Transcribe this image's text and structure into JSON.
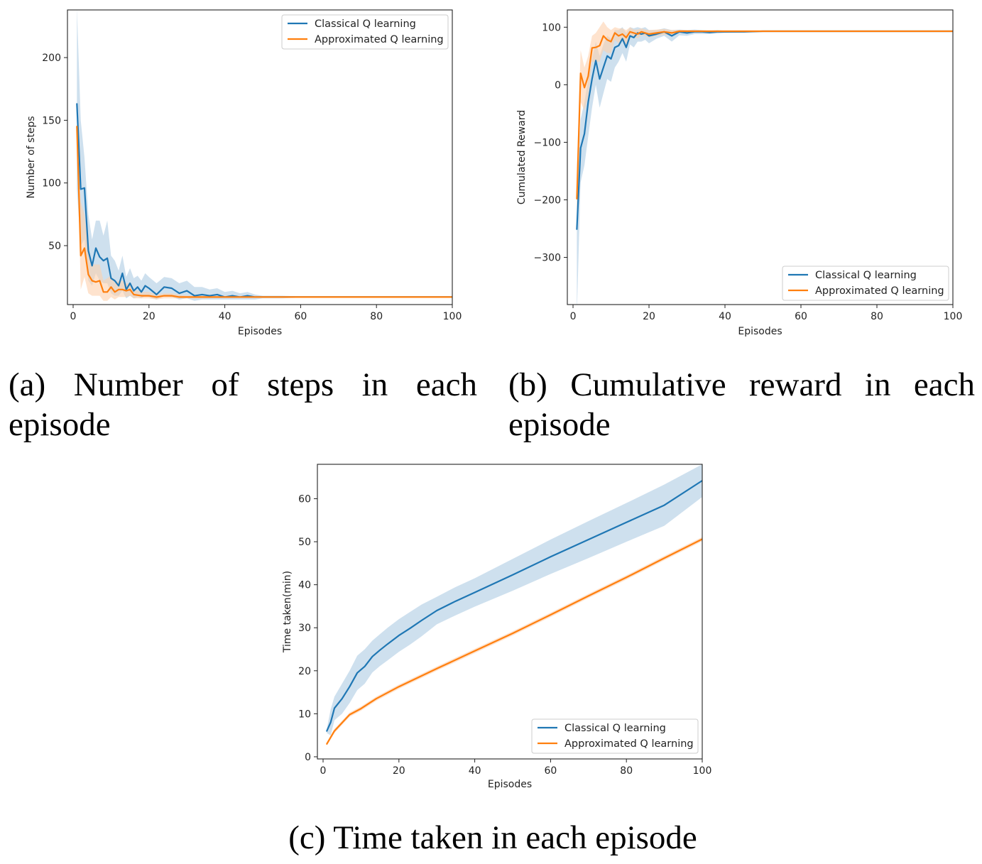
{
  "colors": {
    "classical": "#1f77b4",
    "approximated": "#ff7f0e"
  },
  "captions": {
    "a": "(a) Number of steps in each episode",
    "b": "(b) Cumulative reward in each episode",
    "c": "(c) Time taken in each episode"
  },
  "chart_data": [
    {
      "id": "a",
      "type": "line",
      "xlabel": "Episodes",
      "ylabel": "Number of steps",
      "xlim": [
        -1.5,
        100
      ],
      "ylim": [
        3,
        238
      ],
      "xticks": [
        0,
        20,
        40,
        60,
        80,
        100
      ],
      "yticks": [
        50,
        100,
        150,
        200
      ],
      "grid": false,
      "legend_position": "top-right",
      "series": [
        {
          "name": "Classical Q learning",
          "color": "#1f77b4",
          "band_color": "#aecbe3",
          "x": [
            1,
            2,
            3,
            4,
            5,
            6,
            7,
            8,
            9,
            10,
            11,
            12,
            13,
            14,
            15,
            16,
            17,
            18,
            19,
            20,
            22,
            24,
            26,
            28,
            30,
            32,
            34,
            36,
            38,
            40,
            42,
            44,
            46,
            48,
            50,
            55,
            60,
            70,
            80,
            90,
            100
          ],
          "y": [
            163,
            95,
            96,
            46,
            34,
            48,
            41,
            38,
            40,
            24,
            22,
            18,
            28,
            15,
            20,
            14,
            17,
            13,
            18,
            16,
            11,
            17,
            16,
            12,
            14,
            10,
            11,
            10,
            11,
            9,
            10,
            9,
            10,
            9,
            9,
            9,
            9,
            9,
            9,
            9,
            9
          ],
          "upper": [
            240,
            150,
            120,
            75,
            55,
            70,
            70,
            58,
            70,
            42,
            38,
            30,
            42,
            25,
            32,
            24,
            26,
            22,
            28,
            25,
            20,
            25,
            24,
            20,
            22,
            17,
            17,
            15,
            16,
            13,
            14,
            12,
            13,
            11,
            10,
            10,
            9.5,
            9.2,
            9.1,
            9,
            9
          ],
          "lower": [
            95,
            50,
            55,
            22,
            18,
            28,
            22,
            20,
            20,
            12,
            10,
            10,
            14,
            8,
            10,
            8,
            9,
            8,
            10,
            9,
            7,
            10,
            9,
            7,
            8,
            6,
            7,
            7,
            7,
            7,
            7,
            7,
            7,
            7,
            8,
            8,
            8.5,
            8.8,
            8.9,
            9,
            9
          ]
        },
        {
          "name": "Approximated Q learning",
          "color": "#ff7f0e",
          "band_color": "#fdd1ad",
          "x": [
            1,
            2,
            3,
            4,
            5,
            6,
            7,
            8,
            9,
            10,
            11,
            12,
            13,
            14,
            15,
            16,
            18,
            20,
            22,
            24,
            26,
            28,
            30,
            35,
            40,
            50,
            60,
            70,
            80,
            90,
            100
          ],
          "y": [
            145,
            42,
            48,
            27,
            22,
            21,
            22,
            13,
            13,
            17,
            13,
            15,
            15,
            14,
            15,
            11,
            10,
            10,
            9,
            10,
            10,
            9,
            9,
            9,
            9,
            9,
            9,
            9,
            9,
            9,
            9
          ],
          "upper": [
            145,
            85,
            75,
            45,
            35,
            35,
            35,
            22,
            24,
            26,
            20,
            22,
            22,
            20,
            20,
            15,
            13,
            13,
            11,
            12,
            12,
            11,
            10,
            10,
            9.5,
            9.2,
            9.1,
            9,
            9,
            9,
            9
          ],
          "lower": [
            145,
            15,
            25,
            12,
            10,
            10,
            10,
            6,
            6,
            9,
            7,
            9,
            9,
            9,
            10,
            8,
            8,
            8,
            7,
            8,
            8,
            8,
            8,
            8,
            8.5,
            8.8,
            8.9,
            9,
            9,
            9,
            9
          ]
        }
      ]
    },
    {
      "id": "b",
      "type": "line",
      "xlabel": "Episodes",
      "ylabel": "Cumulated Reward",
      "xlim": [
        -1.5,
        100
      ],
      "ylim": [
        -382,
        130
      ],
      "xticks": [
        0,
        20,
        40,
        60,
        80,
        100
      ],
      "yticks": [
        -300,
        -200,
        -100,
        0,
        100
      ],
      "grid": false,
      "legend_position": "bottom-right",
      "series": [
        {
          "name": "Classical Q learning",
          "color": "#1f77b4",
          "band_color": "#aecbe3",
          "x": [
            1,
            2,
            3,
            4,
            5,
            6,
            7,
            8,
            9,
            10,
            11,
            12,
            13,
            14,
            15,
            16,
            17,
            18,
            19,
            20,
            22,
            24,
            26,
            28,
            30,
            32,
            34,
            36,
            38,
            40,
            45,
            50,
            60,
            70,
            80,
            90,
            100
          ],
          "y": [
            -251,
            -110,
            -85,
            -30,
            10,
            42,
            10,
            30,
            50,
            45,
            65,
            68,
            80,
            65,
            85,
            82,
            90,
            88,
            90,
            85,
            88,
            92,
            85,
            92,
            90,
            92,
            92,
            91,
            92,
            92,
            92,
            93,
            93,
            93,
            93,
            93,
            93
          ],
          "upper": [
            -180,
            -60,
            -30,
            10,
            45,
            75,
            50,
            70,
            85,
            80,
            95,
            95,
            100,
            90,
            100,
            98,
            100,
            98,
            100,
            95,
            95,
            98,
            95,
            96,
            95,
            96,
            95,
            94,
            95,
            94,
            93.5,
            93.5,
            93.2,
            93,
            93,
            93,
            93
          ],
          "lower": [
            -400,
            -170,
            -140,
            -90,
            -40,
            0,
            -40,
            -15,
            10,
            5,
            30,
            40,
            55,
            40,
            70,
            65,
            75,
            75,
            78,
            72,
            80,
            85,
            75,
            86,
            85,
            88,
            88,
            88,
            89,
            90,
            91,
            92,
            92.8,
            93,
            93,
            93,
            93
          ]
        },
        {
          "name": "Approximated Q learning",
          "color": "#ff7f0e",
          "band_color": "#fdd1ad",
          "x": [
            1,
            2,
            3,
            4,
            5,
            6,
            7,
            8,
            9,
            10,
            11,
            12,
            13,
            14,
            15,
            16,
            17,
            18,
            19,
            20,
            22,
            24,
            26,
            28,
            30,
            35,
            40,
            50,
            60,
            70,
            80,
            90,
            100
          ],
          "y": [
            -198,
            20,
            -5,
            15,
            64,
            65,
            68,
            85,
            78,
            75,
            90,
            85,
            88,
            82,
            92,
            90,
            88,
            92,
            90,
            88,
            90,
            92,
            90,
            93,
            93,
            93,
            93,
            93,
            93,
            93,
            93,
            93,
            93
          ],
          "upper": [
            -150,
            60,
            30,
            50,
            85,
            90,
            100,
            110,
            100,
            95,
            100,
            98,
            98,
            95,
            100,
            96,
            96,
            98,
            96,
            95,
            96,
            97,
            95,
            95.5,
            95,
            94,
            93.5,
            93.2,
            93,
            93,
            93,
            93,
            93
          ],
          "lower": [
            -240,
            -30,
            -45,
            -20,
            40,
            40,
            40,
            60,
            55,
            55,
            78,
            72,
            78,
            70,
            84,
            84,
            80,
            86,
            85,
            82,
            85,
            87,
            86,
            90.5,
            91,
            92,
            92.5,
            92.8,
            93,
            93,
            93,
            93,
            93
          ]
        }
      ]
    },
    {
      "id": "c",
      "type": "line",
      "xlabel": "Episodes",
      "ylabel": "Time taken(min)",
      "xlim": [
        -1.5,
        100
      ],
      "ylim": [
        -0.5,
        68
      ],
      "xticks": [
        0,
        20,
        40,
        60,
        80,
        100
      ],
      "yticks": [
        0,
        10,
        20,
        30,
        40,
        50,
        60
      ],
      "grid": false,
      "legend_position": "bottom-right",
      "series": [
        {
          "name": "Classical Q learning",
          "color": "#1f77b4",
          "band_color": "#aecbe3",
          "x": [
            1,
            2,
            3,
            5,
            7,
            9,
            11,
            13,
            15,
            17,
            20,
            23,
            26,
            30,
            35,
            40,
            50,
            60,
            70,
            80,
            90,
            100
          ],
          "y": [
            6,
            8,
            11.3,
            13.5,
            16.3,
            19.5,
            21,
            23.3,
            24.8,
            26.2,
            28.2,
            29.9,
            31.7,
            34,
            36.2,
            38.2,
            42.3,
            46.5,
            50.5,
            54.5,
            58.5,
            64.2
          ],
          "upper": [
            6.5,
            11,
            14,
            17,
            20,
            23.5,
            25,
            27,
            28.5,
            30,
            32,
            33.7,
            35.4,
            37.2,
            39.5,
            41.5,
            46,
            50.5,
            54.8,
            59,
            63.3,
            68
          ],
          "lower": [
            5.5,
            5,
            8.5,
            10,
            12.5,
            15.5,
            17,
            19.6,
            21.1,
            22.4,
            24.4,
            26.1,
            28,
            30.8,
            32.9,
            34.9,
            38.6,
            42.5,
            46.2,
            50,
            53.7,
            60.4
          ]
        },
        {
          "name": "Approximated Q learning",
          "color": "#ff7f0e",
          "band_color": "#fdd1ad",
          "x": [
            1,
            3,
            5,
            7,
            10,
            14,
            20,
            30,
            40,
            50,
            60,
            70,
            80,
            90,
            100
          ],
          "y": [
            3,
            6,
            7.9,
            9.8,
            11.2,
            13.5,
            16.3,
            20.5,
            24.6,
            28.7,
            33,
            37.4,
            41.7,
            46.2,
            50.6
          ],
          "upper": [
            3.4,
            6.5,
            8.4,
            10.3,
            11.7,
            14,
            16.8,
            21,
            25.1,
            29.2,
            33.5,
            37.9,
            42.2,
            46.7,
            51.1
          ],
          "lower": [
            2.6,
            5.5,
            7.4,
            9.3,
            10.7,
            13,
            15.8,
            20,
            24.1,
            28.2,
            32.5,
            36.9,
            41.2,
            45.7,
            50.1
          ]
        }
      ]
    }
  ]
}
